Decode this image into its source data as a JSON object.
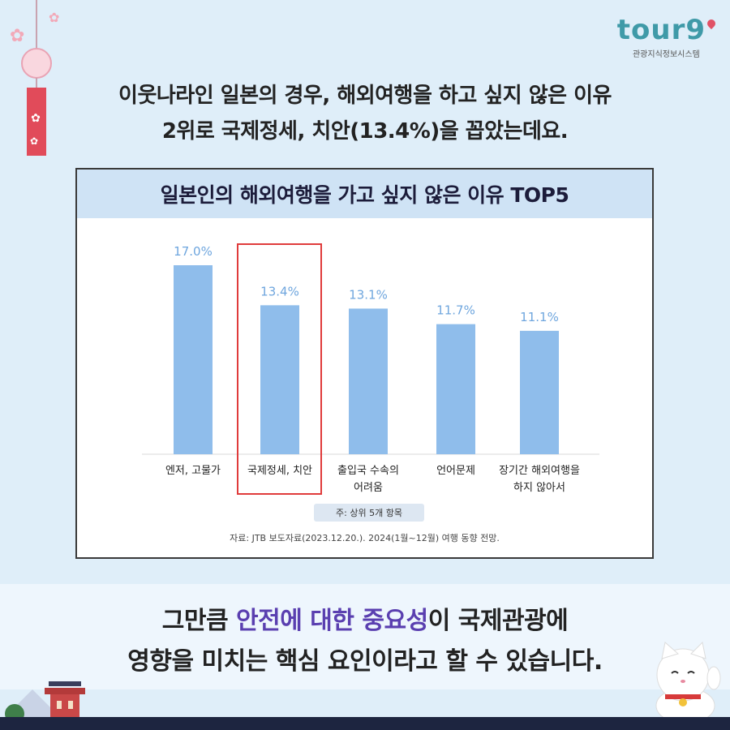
{
  "logo": {
    "word": "tour9",
    "subtitle": "관광지식정보시스템"
  },
  "headline": {
    "line1": "이웃나라인 일본의 경우, 해외여행을 하고 싶지 않은 이유",
    "line2": "2위로 국제정세, 치안(13.4%)을 꼽았는데요."
  },
  "chart_data": {
    "type": "bar",
    "title": "일본인의 해외여행을 가고 싶지 않은 이유 TOP5",
    "categories": [
      [
        "엔저, 고물가"
      ],
      [
        "국제정세, 치안"
      ],
      [
        "출입국 수속의",
        "어려움"
      ],
      [
        "언어문제"
      ],
      [
        "장기간 해외여행을",
        "하지 않아서"
      ]
    ],
    "values": [
      17.0,
      13.4,
      13.1,
      11.7,
      11.1
    ],
    "value_labels": [
      "17.0%",
      "13.4%",
      "13.1%",
      "11.7%",
      "11.1%"
    ],
    "ylim": [
      0,
      17.0
    ],
    "highlighted_index": 1,
    "bar_color": "#8fbdeb",
    "label_color": "#6fa6de",
    "highlight_color": "#e03b3b",
    "grid": false,
    "note": "주: 상위 5개 항목",
    "source": "자료: JTB 보도자료(2023.12.20.). 2024(1월~12월) 여행 동향 전망."
  },
  "bottom": {
    "pre": "그만큼 ",
    "accent": "안전에 대한 중요성",
    "post": "이 국제관광에",
    "line2": "영향을 미치는 핵심 요인이라고 할 수 있습니다."
  },
  "colors": {
    "background": "#dfeef9",
    "accent": "#5a3fb0",
    "logo": "#3f9aa8"
  }
}
